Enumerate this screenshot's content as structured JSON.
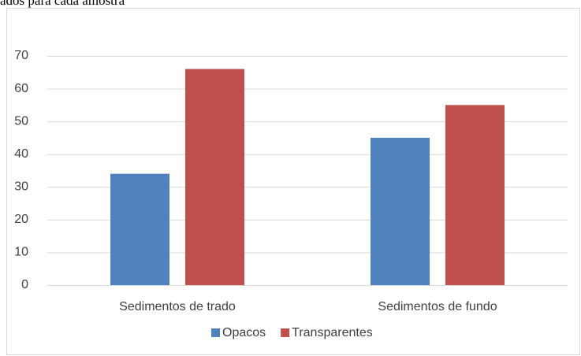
{
  "chart_data": {
    "type": "bar",
    "title": "ados para cada amostra",
    "categories": [
      "Sedimentos de trado",
      "Sedimentos de fundo"
    ],
    "series": [
      {
        "name": "Opacos",
        "color": "#4f81bd",
        "values": [
          34,
          45
        ]
      },
      {
        "name": "Transparentes",
        "color": "#c0504d",
        "values": [
          66,
          55
        ]
      }
    ],
    "ylim": [
      0,
      70
    ],
    "yticks": [
      0,
      10,
      20,
      30,
      40,
      50,
      60,
      70
    ],
    "grid": true,
    "legend": "bottom"
  }
}
